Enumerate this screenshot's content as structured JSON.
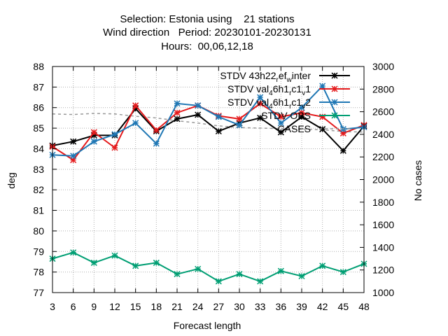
{
  "chart_data": {
    "type": "line",
    "title_lines": [
      "Selection: Estonia using    21 stations",
      "Wind direction   Period: 20230101-20230131",
      "Hours:  00,06,12,18"
    ],
    "xlabel": "Forecast length",
    "ylabel": "deg",
    "y2label": "No cases",
    "x": [
      3,
      6,
      9,
      12,
      15,
      18,
      21,
      24,
      27,
      30,
      33,
      36,
      39,
      42,
      45,
      48
    ],
    "xlim": [
      3,
      48
    ],
    "ylim": [
      77,
      88
    ],
    "y2lim": [
      1000,
      3000
    ],
    "yticks": [
      "77",
      "78",
      "79",
      "80",
      "81",
      "82",
      "83",
      "84",
      "85",
      "86",
      "87",
      "88"
    ],
    "y2ticks": [
      "1000",
      "1200",
      "1400",
      "1600",
      "1800",
      "2000",
      "2200",
      "2400",
      "2600",
      "2800",
      "3000"
    ],
    "grid": true,
    "legend_position": "top-right",
    "series": [
      {
        "legend": {
          "base": "STDV 43h22",
          "parts": [
            [
              "sub",
              "r"
            ],
            [
              "norm",
              "ef"
            ],
            [
              "sub",
              "w"
            ],
            [
              "norm",
              "inter"
            ]
          ]
        },
        "color": "#000000",
        "marker": "star",
        "axis": "y",
        "values": [
          84.15,
          84.35,
          84.65,
          84.65,
          85.95,
          84.85,
          85.45,
          85.65,
          84.85,
          85.25,
          85.5,
          84.8,
          85.55,
          84.95,
          83.9,
          85.1
        ]
      },
      {
        "legend": {
          "base": "STDV val",
          "parts": [
            [
              "sub",
              "4"
            ],
            [
              "norm",
              "6h1"
            ],
            [
              "sub",
              "r"
            ],
            [
              "norm",
              "c1"
            ],
            [
              "sub",
              "v"
            ],
            [
              "norm",
              "1"
            ]
          ]
        },
        "color": "#e41a1c",
        "marker": "star",
        "axis": "y",
        "values": [
          84.1,
          83.45,
          84.8,
          84.05,
          86.1,
          84.9,
          85.75,
          86.1,
          85.6,
          85.45,
          86.2,
          85.55,
          85.75,
          85.55,
          84.75,
          85.15
        ]
      },
      {
        "legend": {
          "base": "STDV val",
          "parts": [
            [
              "sub",
              "4"
            ],
            [
              "norm",
              "6h1"
            ],
            [
              "sub",
              "r"
            ],
            [
              "norm",
              "c1"
            ],
            [
              "sub",
              "v"
            ],
            [
              "norm",
              "2"
            ]
          ]
        },
        "color": "#1f77b4",
        "marker": "star",
        "axis": "y",
        "values": [
          83.7,
          83.65,
          84.35,
          84.7,
          85.25,
          84.25,
          86.2,
          86.1,
          85.55,
          85.15,
          86.5,
          85.25,
          86.0,
          87.05,
          84.95,
          85.05
        ]
      },
      {
        "legend": {
          "base": "STDV OBS",
          "parts": []
        },
        "color": "#009e73",
        "marker": "star",
        "axis": "y",
        "values": [
          78.65,
          78.95,
          78.45,
          78.8,
          78.3,
          78.45,
          77.9,
          78.15,
          77.55,
          77.9,
          77.55,
          78.05,
          77.8,
          78.3,
          78.0,
          78.4
        ]
      },
      {
        "legend": {
          "base": "CASES",
          "parts": []
        },
        "color": "#999999",
        "marker": "none",
        "dashed": true,
        "axis": "y2",
        "values": [
          2580,
          2575,
          2585,
          2580,
          2560,
          2545,
          2520,
          2500,
          2475,
          2460,
          2455,
          2450,
          2445,
          2440,
          2425,
          2420
        ]
      }
    ]
  }
}
